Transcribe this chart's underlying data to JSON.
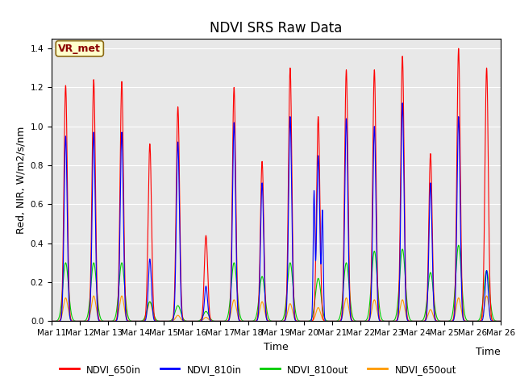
{
  "title": "NDVI SRS Raw Data",
  "xlabel": "Time",
  "ylabel": "Red, NIR, W/m2/s/nm",
  "annotation": "VR_met",
  "legend_labels": [
    "NDVI_650in",
    "NDVI_810in",
    "NDVI_810out",
    "NDVI_650out"
  ],
  "colors": [
    "#ff0000",
    "#0000ff",
    "#00cc00",
    "#ff9900"
  ],
  "ylim": [
    0,
    1.45
  ],
  "xtick_labels": [
    "Mar 11",
    "Mar 12",
    "Mar 13",
    "Mar 14",
    "Mar 15",
    "Mar 16",
    "Mar 17",
    "Mar 18",
    "Mar 19",
    "Mar 20",
    "Mar 21",
    "Mar 22",
    "Mar 23",
    "Mar 24",
    "Mar 25",
    "Mar 26"
  ],
  "day_peaks_650in": [
    1.21,
    1.24,
    1.23,
    0.91,
    1.1,
    0.44,
    1.2,
    0.82,
    1.3,
    1.05,
    1.29,
    1.29,
    1.36,
    0.86,
    1.4,
    1.3
  ],
  "day_peaks_810in": [
    0.95,
    0.97,
    0.97,
    0.32,
    0.92,
    0.18,
    1.02,
    0.71,
    1.05,
    0.85,
    1.04,
    1.0,
    1.12,
    0.71,
    1.05,
    0.26
  ],
  "day_peaks_810out": [
    0.3,
    0.3,
    0.3,
    0.1,
    0.08,
    0.05,
    0.3,
    0.23,
    0.3,
    0.22,
    0.3,
    0.36,
    0.37,
    0.25,
    0.39,
    0.26
  ],
  "day_peaks_650out": [
    0.12,
    0.13,
    0.13,
    0.1,
    0.03,
    0.02,
    0.11,
    0.1,
    0.09,
    0.07,
    0.12,
    0.11,
    0.11,
    0.06,
    0.12,
    0.13
  ],
  "n_days": 16,
  "pts_per_day": 200,
  "title_fontsize": 12,
  "label_fontsize": 9,
  "tick_fontsize": 7.5
}
